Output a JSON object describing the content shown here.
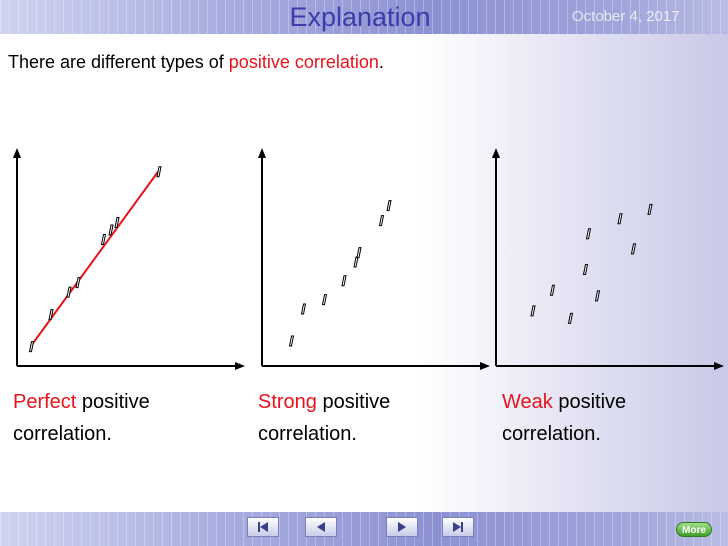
{
  "header": {
    "title": "Explanation",
    "date": "October 4, 2017"
  },
  "intro": {
    "text_before": "There are different types of ",
    "highlight": "positive correlation",
    "text_after": "."
  },
  "colors": {
    "highlight": "#e8121b",
    "title": "#3c3caa",
    "trend_line": "#e8121b",
    "bars": "#9095d6"
  },
  "charts": [
    {
      "caption_highlight": "Perfect",
      "caption_rest": " positive",
      "caption_line2": "correlation.",
      "has_trend_line": true,
      "points": [
        [
          0.05,
          0.05
        ],
        [
          0.18,
          0.22
        ],
        [
          0.3,
          0.34
        ],
        [
          0.36,
          0.39
        ],
        [
          0.53,
          0.62
        ],
        [
          0.58,
          0.67
        ],
        [
          0.62,
          0.71
        ],
        [
          0.9,
          0.98
        ]
      ]
    },
    {
      "caption_highlight": "Strong",
      "caption_rest": " positive",
      "caption_line2": "correlation.",
      "has_trend_line": false,
      "points": [
        [
          0.15,
          0.08
        ],
        [
          0.23,
          0.25
        ],
        [
          0.37,
          0.3
        ],
        [
          0.5,
          0.4
        ],
        [
          0.58,
          0.5
        ],
        [
          0.6,
          0.55
        ],
        [
          0.75,
          0.72
        ],
        [
          0.8,
          0.8
        ]
      ]
    },
    {
      "caption_highlight": "Weak",
      "caption_rest": " positive",
      "caption_line2": "correlation.",
      "has_trend_line": false,
      "points": [
        [
          0.2,
          0.24
        ],
        [
          0.33,
          0.35
        ],
        [
          0.45,
          0.2
        ],
        [
          0.55,
          0.46
        ],
        [
          0.57,
          0.65
        ],
        [
          0.63,
          0.32
        ],
        [
          0.78,
          0.73
        ],
        [
          0.87,
          0.57
        ],
        [
          0.98,
          0.78
        ]
      ]
    }
  ],
  "nav": {
    "buttons": [
      "first",
      "previous",
      "next",
      "last"
    ],
    "more_label": "More"
  }
}
